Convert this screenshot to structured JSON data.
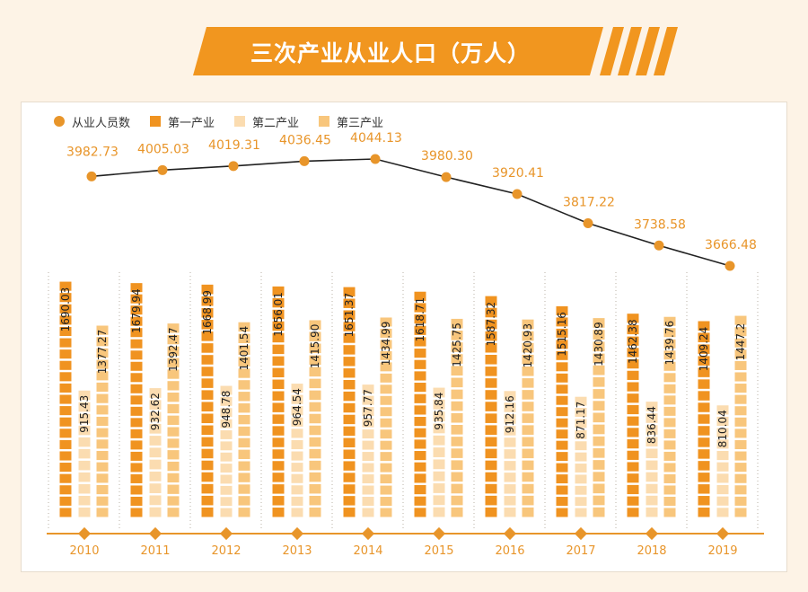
{
  "title": "三次产业从业人口（万人）",
  "colors": {
    "background": "#fdf3e6",
    "banner": "#f1961f",
    "total_point": "#e8952a",
    "total_line": "#222222",
    "primary": "#f09320",
    "secondary": "#fbdcb0",
    "tertiary": "#f8c67c",
    "axis": "#e8952a",
    "year_text": "#e8952a"
  },
  "legend": [
    {
      "label": "从业人员数",
      "shape": "dot",
      "color": "#e8952a"
    },
    {
      "label": "第一产业",
      "shape": "square",
      "color": "#f09320"
    },
    {
      "label": "第二产业",
      "shape": "square",
      "color": "#fbdcb0"
    },
    {
      "label": "第三产业",
      "shape": "square",
      "color": "#f8c67c"
    }
  ],
  "chart_data": {
    "type": "bar",
    "title": "三次产业从业人口（万人）",
    "categories": [
      "2010",
      "2011",
      "2012",
      "2013",
      "2014",
      "2015",
      "2016",
      "2017",
      "2018",
      "2019"
    ],
    "series": [
      {
        "name": "从业人员数",
        "type": "line",
        "values": [
          3982.73,
          4005.03,
          4019.31,
          4036.45,
          4044.13,
          3980.3,
          3920.41,
          3817.22,
          3738.58,
          3666.48
        ]
      },
      {
        "name": "第一产业",
        "type": "bar",
        "values": [
          1690.03,
          1679.94,
          1668.99,
          1656.01,
          1651.37,
          1618.71,
          1587.32,
          1515.16,
          1462.38,
          1409.24
        ]
      },
      {
        "name": "第二产业",
        "type": "bar",
        "values": [
          915.43,
          932.62,
          948.78,
          964.54,
          957.77,
          935.84,
          912.16,
          871.17,
          836.44,
          810.04
        ]
      },
      {
        "name": "第三产业",
        "type": "bar",
        "values": [
          1377.27,
          1392.47,
          1401.54,
          1415.9,
          1434.99,
          1425.75,
          1420.93,
          1430.89,
          1439.76,
          1447.2
        ]
      }
    ],
    "labels": {
      "total": [
        "3982.73",
        "4005.03",
        "4019.31",
        "4036.45",
        "4044.13",
        "3980.30",
        "3920.41",
        "3817.22",
        "3738.58",
        "3666.48"
      ],
      "primary": [
        "1690.03",
        "1679.94",
        "1668.99",
        "1656.01",
        "1651.37",
        "1618.71",
        "1587.32",
        "1515.16",
        "1462.38",
        "1409.24"
      ],
      "secondary": [
        "915.43",
        "932.62",
        "948.78",
        "964.54",
        "957.77",
        "935.84",
        "912.16",
        "871.17",
        "836.44",
        "810.04"
      ],
      "tertiary": [
        "1377.27",
        "1392.47",
        "1401.54",
        "1415.90",
        "1434.99",
        "1425.75",
        "1420.93",
        "1430.89",
        "1439.76",
        "1447.2"
      ]
    },
    "legend_position": "top-left",
    "grid": false
  }
}
